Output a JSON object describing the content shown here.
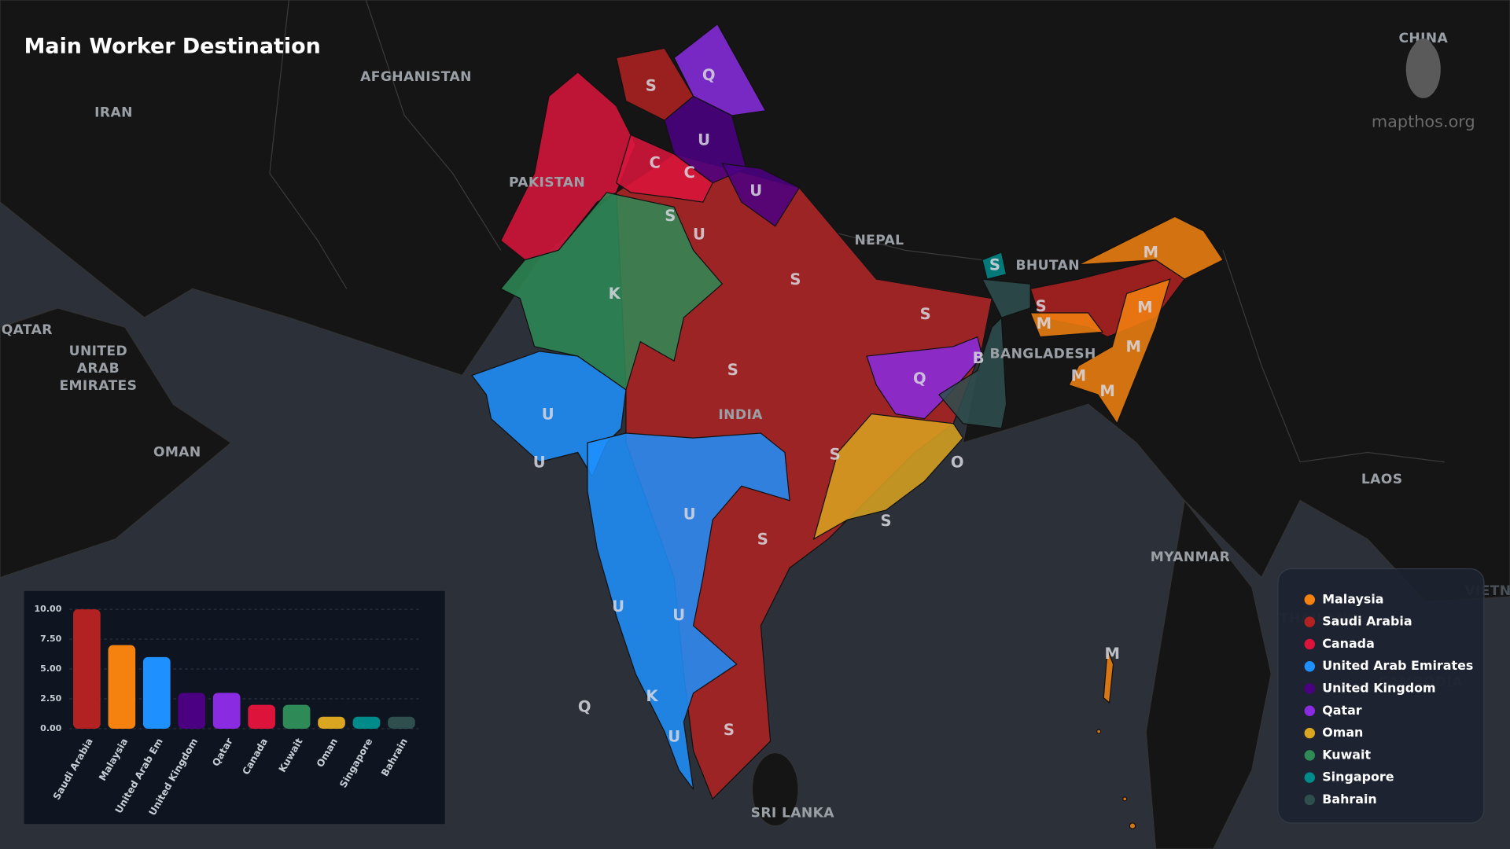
{
  "header": {
    "title": "Main Worker Destination",
    "site": "mapthos.org"
  },
  "map_labels": [
    "AFGHANISTAN",
    "IRAN",
    "PAKISTAN",
    "NEPAL",
    "BHUTAN",
    "BANGLADESH",
    "INDIA",
    "QATAR",
    "UNITED",
    "ARAB",
    "EMIRATES",
    "OMAN",
    "MYANMAR",
    "LAOS",
    "SRI LANKA",
    "CHINA",
    "THAILAND",
    "CAMBODIA",
    "VIETN"
  ],
  "region_labels": [
    "S",
    "Q",
    "U",
    "C",
    "C",
    "U",
    "S",
    "U",
    "K",
    "S",
    "S",
    "S",
    "M",
    "S",
    "M",
    "M",
    "M",
    "B",
    "Q",
    "M",
    "M",
    "S",
    "U",
    "U",
    "S",
    "O",
    "S",
    "U",
    "S",
    "U",
    "U",
    "K",
    "U",
    "S",
    "Q",
    "M"
  ],
  "legend": [
    {
      "name": "Malaysia",
      "color": "#f5820f"
    },
    {
      "name": "Saudi Arabia",
      "color": "#b22222"
    },
    {
      "name": "Canada",
      "color": "#dc143c"
    },
    {
      "name": "United Arab Emirates",
      "color": "#1e90ff"
    },
    {
      "name": "United Kingdom",
      "color": "#4b0082"
    },
    {
      "name": "Qatar",
      "color": "#8a2be2"
    },
    {
      "name": "Oman",
      "color": "#daa520"
    },
    {
      "name": "Kuwait",
      "color": "#2e8b57"
    },
    {
      "name": "Singapore",
      "color": "#008b8b"
    },
    {
      "name": "Bahrain",
      "color": "#2f4f4f"
    }
  ],
  "chart_data": {
    "type": "bar",
    "categories": [
      "Saudi Arabia",
      "Malaysia",
      "United Arab Em",
      "United Kingdom",
      "Qatar",
      "Canada",
      "Kuwait",
      "Oman",
      "Singapore",
      "Bahrain"
    ],
    "values": [
      10,
      7,
      6,
      3,
      3,
      2,
      2,
      1,
      1,
      1
    ],
    "colors": [
      "#b22222",
      "#f5820f",
      "#1e90ff",
      "#4b0082",
      "#8a2be2",
      "#dc143c",
      "#2e8b57",
      "#daa520",
      "#008b8b",
      "#2f4f4f"
    ],
    "ylim": [
      0,
      10
    ],
    "yticks": [
      {
        "value": 0,
        "label": "0.00"
      },
      {
        "value": 2.5,
        "label": "2.50"
      },
      {
        "value": 5,
        "label": "5.00"
      },
      {
        "value": 7.5,
        "label": "7.50"
      },
      {
        "value": 10,
        "label": "10.00"
      }
    ],
    "grid": true
  }
}
